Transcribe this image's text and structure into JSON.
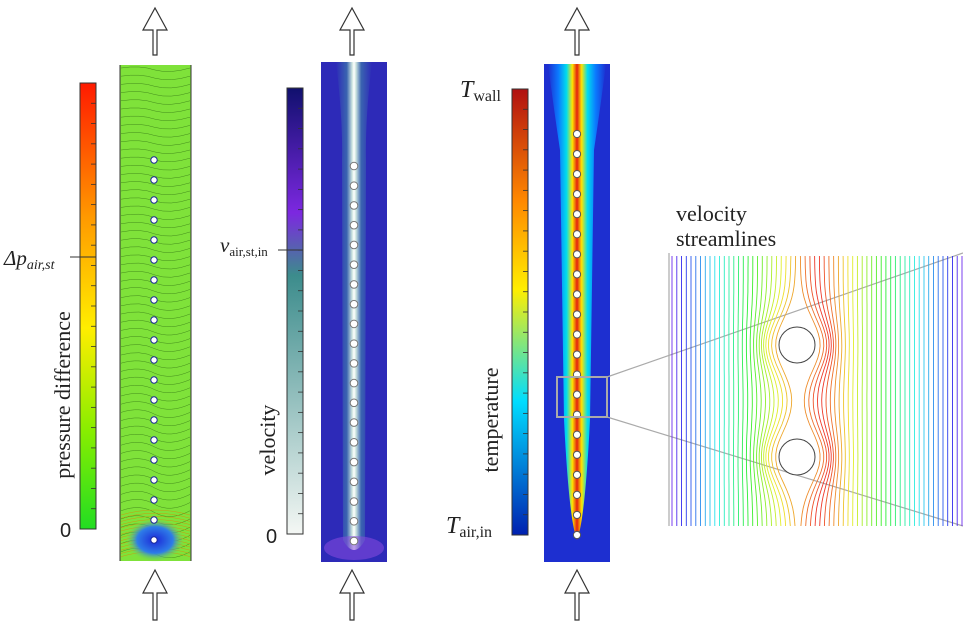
{
  "panels": {
    "pressure": {
      "axis_label": "pressure difference",
      "tick_mid": "Δp",
      "tick_mid_sub": "air,st",
      "tick_zero": "0",
      "colors": {
        "top": "#ff1a00",
        "upper": "#ff9900",
        "mid": "#ffee00",
        "lower": "#88ee00",
        "bottom": "#22dd22",
        "field": "#7fe23a",
        "contour": "#2a6a10"
      }
    },
    "velocity": {
      "axis_label": "velocity",
      "tick_mid": "v",
      "tick_mid_sub": "air,st,in",
      "tick_zero": "0",
      "colors": {
        "top": "#10106e",
        "upper": "#7c28e0",
        "mid": "#3c8c8c",
        "bottom": "#f4f7f4",
        "field": "#2d2ab8",
        "jet": "#ffffff"
      }
    },
    "temperature": {
      "axis_label": "temperature",
      "tick_top": "T",
      "tick_top_sub": "wall",
      "tick_bottom": "T",
      "tick_bottom_sub": "air,in",
      "colors": {
        "top": "#b01010",
        "upper": "#ff8800",
        "mid": "#ffee00",
        "lower": "#00ddff",
        "bottom": "#0020b0",
        "field": "#1d2fd0",
        "core": "#e02010"
      }
    },
    "streamlines": {
      "title_line1": "velocity",
      "title_line2": "streamlines"
    }
  }
}
